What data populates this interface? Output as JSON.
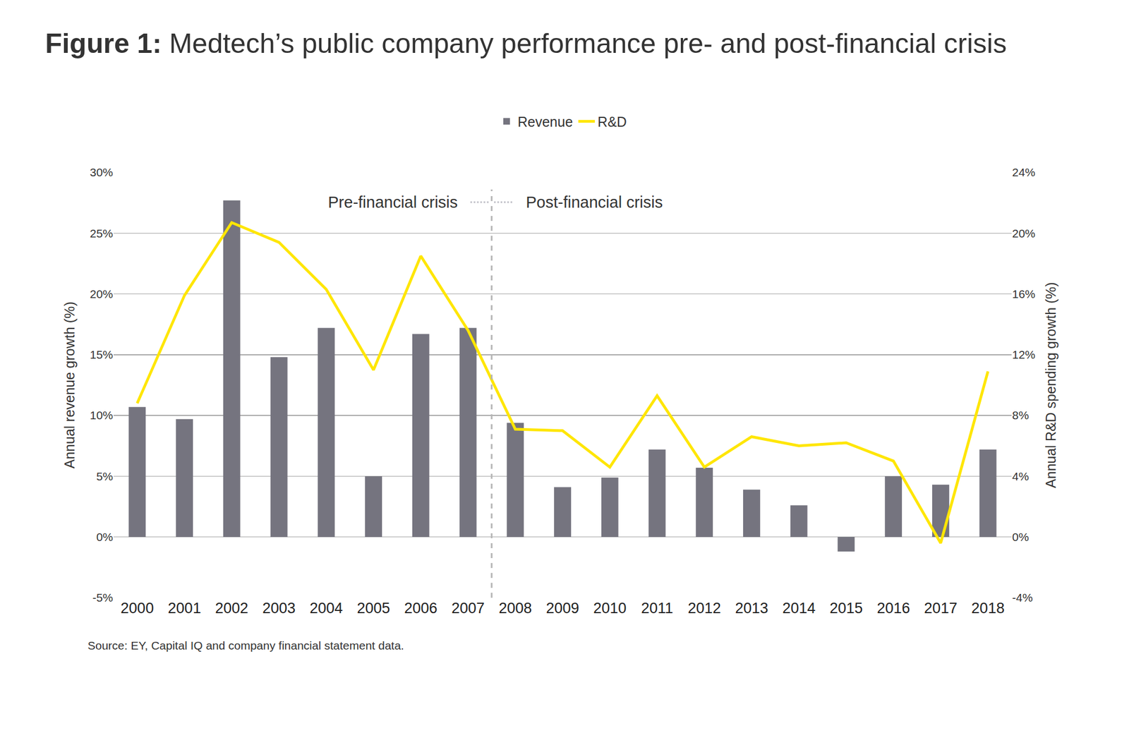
{
  "chart_data": {
    "type": "bar",
    "title": "Figure 1: Medtech’s public company performance pre- and post-financial crisis",
    "categories": [
      "2000",
      "2001",
      "2002",
      "2003",
      "2004",
      "2005",
      "2006",
      "2007",
      "2008",
      "2009",
      "2010",
      "2011",
      "2012",
      "2013",
      "2014",
      "2015",
      "2016",
      "2017",
      "2018"
    ],
    "series": [
      {
        "name": "Revenue",
        "type": "bar",
        "color": "#75747f",
        "values": [
          10.7,
          9.7,
          27.7,
          14.8,
          17.2,
          5.0,
          16.7,
          17.2,
          9.4,
          4.1,
          4.9,
          7.2,
          5.7,
          3.9,
          2.6,
          -1.2,
          5.0,
          4.3,
          7.2
        ]
      },
      {
        "name": "R&D",
        "type": "line",
        "axis": "y2",
        "color": "#ffe600",
        "values": [
          8.8,
          15.9,
          20.7,
          19.4,
          16.3,
          11.0,
          18.5,
          13.6,
          7.1,
          7.0,
          4.6,
          9.3,
          4.6,
          6.6,
          6.0,
          6.2,
          5.0,
          -0.4,
          10.9
        ]
      }
    ],
    "ylabel": "Annual revenue growth (%)",
    "y2label": "Annual R&D spending growth (%)",
    "ylim": [
      -5,
      30
    ],
    "yticks": [
      {
        "value": -5,
        "label": "-5%"
      },
      {
        "value": 0,
        "label": "0%"
      },
      {
        "value": 5,
        "label": "5%"
      },
      {
        "value": 10,
        "label": "10%"
      },
      {
        "value": 15,
        "label": "15%"
      },
      {
        "value": 20,
        "label": "20%"
      },
      {
        "value": 25,
        "label": "25%"
      },
      {
        "value": 30,
        "label": "30%"
      }
    ],
    "y2lim": [
      -4,
      24
    ],
    "y2ticks": [
      {
        "value": -4,
        "label": "-4%"
      },
      {
        "value": 0,
        "label": "0%"
      },
      {
        "value": 4,
        "label": "4%"
      },
      {
        "value": 8,
        "label": "8%"
      },
      {
        "value": 12,
        "label": "12%"
      },
      {
        "value": 16,
        "label": "16%"
      },
      {
        "value": 20,
        "label": "20%"
      },
      {
        "value": 24,
        "label": "24%"
      }
    ],
    "annotations": [
      {
        "text": "Pre-financial crisis",
        "x": "2007"
      },
      {
        "text": "Post-financial crisis",
        "x": "2008"
      }
    ],
    "source": "Source: EY, Capital IQ and company financial statement data.",
    "legend": "top",
    "grid": true
  }
}
